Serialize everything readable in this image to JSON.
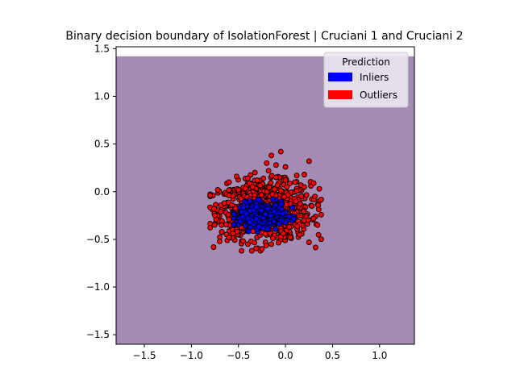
{
  "chart_data": {
    "type": "scatter",
    "title": "Binary decision boundary of IsolationForest | Cruciani 1 and Cruciani 2",
    "xlabel": "",
    "ylabel": "",
    "xlim": [
      -1.8,
      1.37
    ],
    "ylim": [
      -1.6,
      1.52
    ],
    "x_ticks": [
      -1.5,
      -1.0,
      -0.5,
      0.0,
      0.5,
      1.0
    ],
    "x_tick_labels": [
      "−1.5",
      "−1.0",
      "−0.5",
      "0.0",
      "0.5",
      "1.0"
    ],
    "y_ticks": [
      -1.5,
      -1.0,
      -0.5,
      0.0,
      0.5,
      1.0,
      1.5
    ],
    "y_tick_labels": [
      "−1.5",
      "−1.0",
      "−0.5",
      "0.0",
      "0.5",
      "1.0",
      "1.5"
    ],
    "grid": false,
    "background_region": {
      "x": [
        -1.8,
        1.37
      ],
      "y": [
        -1.6,
        1.42
      ],
      "color": "#a58bb4"
    },
    "legend": {
      "title": "Prediction",
      "placement": "top-right",
      "entries": [
        {
          "label": "Inliers",
          "color": "#0000ff"
        },
        {
          "label": "Outliers",
          "color": "#ff0000"
        }
      ]
    },
    "series": [
      {
        "name": "Outliers",
        "color": "#ff0000",
        "points": [
          [
            -0.05,
            0.42
          ],
          [
            0.25,
            0.32
          ],
          [
            -0.15,
            0.38
          ],
          [
            -0.2,
            0.3
          ],
          [
            -0.1,
            0.28
          ],
          [
            0.0,
            0.26
          ],
          [
            -0.18,
            0.22
          ],
          [
            -0.52,
            0.16
          ],
          [
            0.3,
            0.09
          ],
          [
            0.36,
            0.03
          ],
          [
            0.12,
            0.17
          ],
          [
            0.2,
            0.18
          ],
          [
            -0.4,
            0.14
          ],
          [
            -0.3,
            0.12
          ],
          [
            -0.6,
            0.1
          ],
          [
            -0.75,
            -0.25
          ],
          [
            -0.7,
            -0.52
          ],
          [
            -0.6,
            -0.48
          ],
          [
            -0.25,
            -0.6
          ],
          [
            -0.4,
            -0.55
          ],
          [
            0.25,
            -0.53
          ],
          [
            0.15,
            -0.45
          ],
          [
            0.3,
            -0.28
          ],
          [
            0.34,
            -0.35
          ],
          [
            -0.65,
            -0.12
          ],
          [
            0.2,
            0.05
          ],
          [
            -0.1,
            0.15
          ],
          [
            -0.5,
            0.02
          ],
          [
            0.05,
            -0.48
          ],
          [
            -0.15,
            -0.55
          ],
          [
            0.28,
            -0.15
          ],
          [
            -0.68,
            -0.35
          ],
          [
            0.1,
            0.1
          ],
          [
            -0.35,
            0.05
          ],
          [
            0.0,
            0.12
          ]
        ],
        "cluster": {
          "cx": -0.22,
          "cy": -0.2,
          "sx": 0.24,
          "sy": 0.15,
          "n": 900,
          "xrange": [
            -0.8,
            0.38
          ],
          "yrange": [
            -0.62,
            0.2
          ]
        }
      },
      {
        "name": "Inliers",
        "color": "#0000ff",
        "cluster": {
          "cx": -0.24,
          "cy": -0.24,
          "sx": 0.12,
          "sy": 0.06,
          "n": 420,
          "xrange": [
            -0.55,
            0.1
          ],
          "yrange": [
            -0.42,
            -0.08
          ]
        }
      }
    ]
  }
}
